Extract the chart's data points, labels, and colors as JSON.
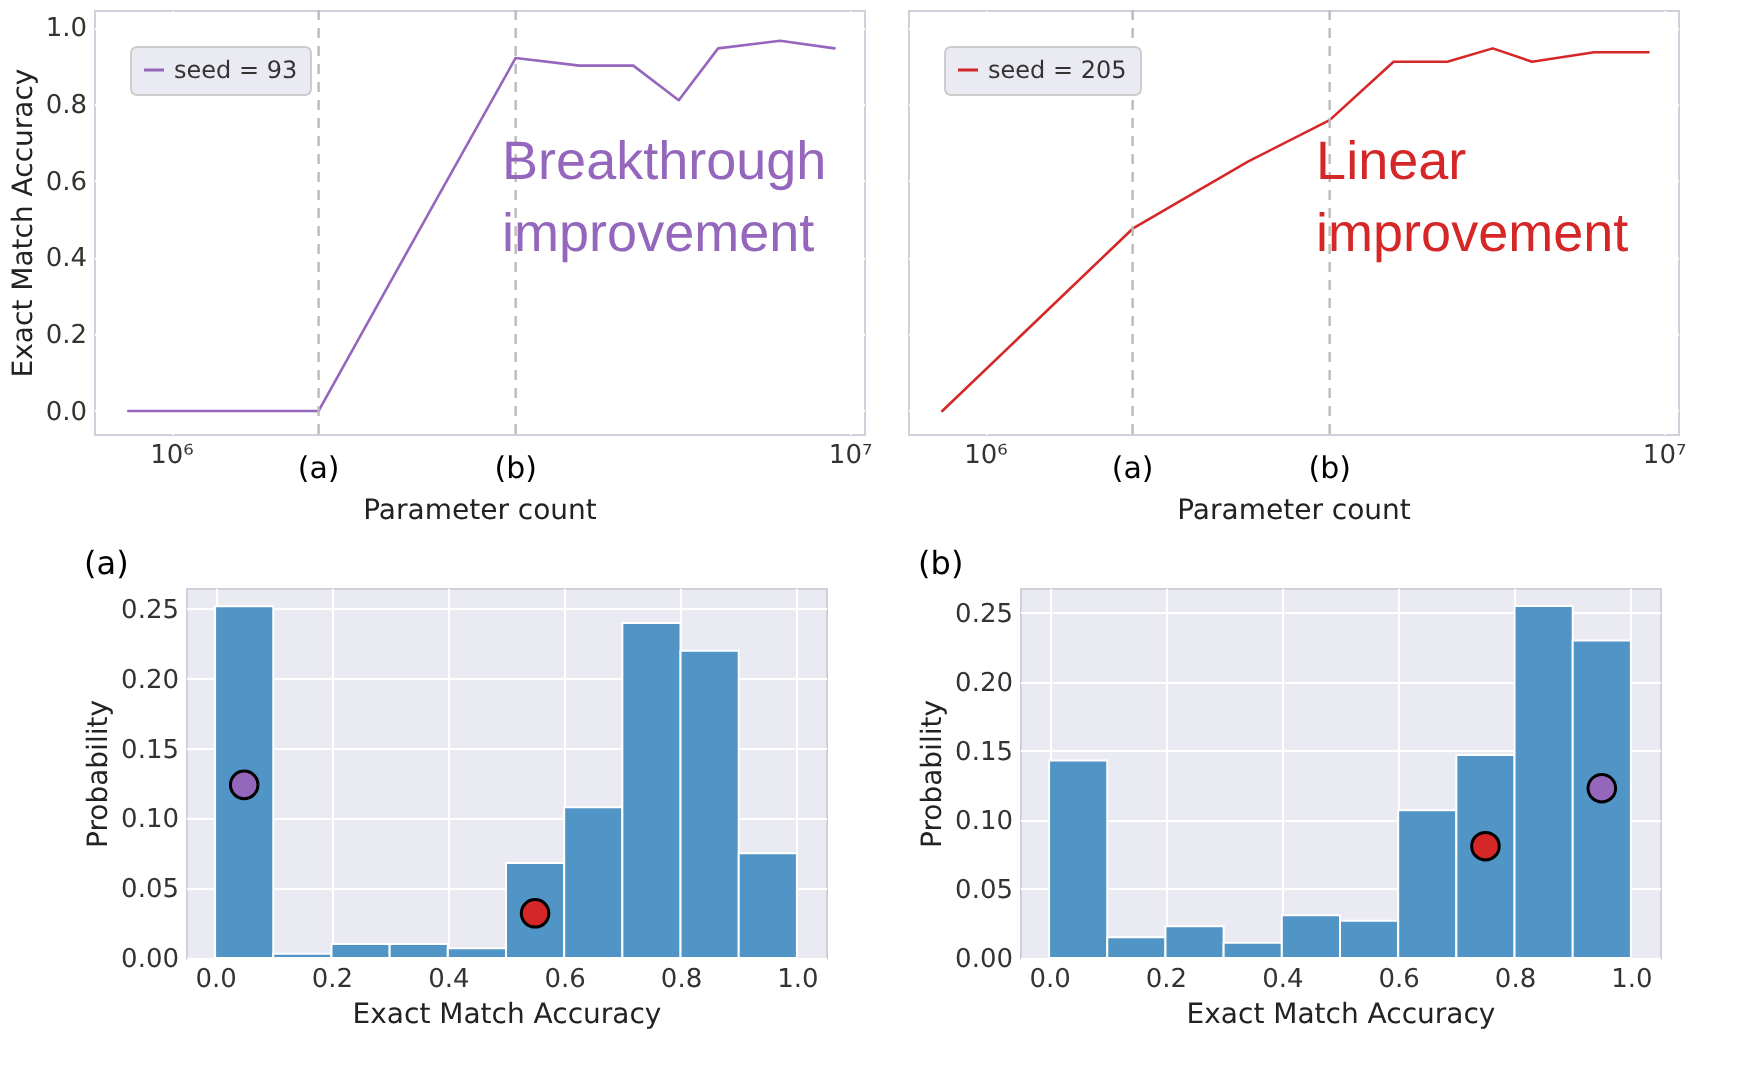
{
  "chart_data": [
    {
      "type": "line",
      "xlabel": "Parameter count",
      "ylabel": "Exact Match Accuracy",
      "log": "x",
      "grid": true,
      "legend": "top left",
      "marker": "none",
      "line_style": "solid",
      "x": [
        865000,
        1650000,
        2440000,
        3220000,
        4000000,
        4800000,
        5600000,
        6400000,
        7900000,
        9500000
      ],
      "series": [
        {
          "name": "seed = 93",
          "color": "#9467bd",
          "values": [
            0,
            0,
            0.54,
            0.92,
            0.9,
            0.9,
            0.81,
            0.945,
            0.965,
            0.945
          ]
        }
      ],
      "xlim": [
        770000,
        10500000
      ],
      "xticks": [
        {
          "value": 1000000,
          "label": "10⁶"
        },
        {
          "value": 10000000,
          "label": "10⁷"
        }
      ],
      "ylim": [
        -0.06,
        1.045
      ],
      "yticks": [
        {
          "value": 0,
          "label": "0.0"
        },
        0.2,
        0.4,
        0.6,
        0.8,
        {
          "value": 1,
          "label": "1.0"
        }
      ],
      "ref_lines": [
        {
          "axis": "x",
          "value": 1650000,
          "label": "(a)",
          "color": "#bbbbbb",
          "line_style": "dashed"
        },
        {
          "axis": "x",
          "value": 3220000,
          "label": "(b)",
          "color": "#bbbbbb",
          "line_style": "dashed"
        }
      ],
      "annotations": [
        "Breakthrough\nimprovement"
      ]
    },
    {
      "type": "line",
      "xlabel": "Parameter count",
      "log": "x",
      "grid": true,
      "legend": "top left",
      "marker": "none",
      "line_style": "solid",
      "tick_labels": "x",
      "x": [
        865000,
        1650000,
        2440000,
        3220000,
        4000000,
        4800000,
        5600000,
        6400000,
        7900000,
        9500000
      ],
      "series": [
        {
          "name": "seed = 205",
          "color": "#d62728",
          "values": [
            0,
            0.475,
            0.65,
            0.758,
            0.91,
            0.91,
            0.945,
            0.91,
            0.935,
            0.935
          ]
        }
      ],
      "xlim": [
        770000,
        10500000
      ],
      "xticks": [
        {
          "value": 1000000,
          "label": "10⁶"
        },
        {
          "value": 10000000,
          "label": "10⁷"
        }
      ],
      "ylim": [
        -0.06,
        1.045
      ],
      "yticks": [
        0,
        0.2,
        0.4,
        0.6,
        0.8,
        1
      ],
      "ref_lines": [
        {
          "axis": "x",
          "value": 1650000,
          "label": "(a)",
          "color": "#bbbbbb",
          "line_style": "dashed"
        },
        {
          "axis": "x",
          "value": 3220000,
          "label": "(b)",
          "color": "#bbbbbb",
          "line_style": "dashed"
        }
      ],
      "annotations": [
        "Linear\nimprovement"
      ]
    },
    {
      "type": "histogram",
      "title": "(a)",
      "xlabel": "Exact Match Accuracy",
      "ylabel": "Probability",
      "grid": true,
      "marker": "circle",
      "bins": [
        0,
        0.1,
        0.2,
        0.3,
        0.4,
        0.5,
        0.6,
        0.7,
        0.8,
        0.9,
        1
      ],
      "series": [
        {
          "type": "histogram",
          "color": "#5095c5",
          "values": [
            0.252,
            0.003,
            0.01,
            0.01,
            0.007,
            0.068,
            0.108,
            0.24,
            0.22,
            0.075
          ]
        },
        {
          "type": "scatter",
          "color": "#9467bd",
          "x": [
            0.05
          ],
          "values": [
            0.124
          ]
        },
        {
          "type": "scatter",
          "color": "#d62728",
          "x": [
            0.55
          ],
          "values": [
            0.032
          ]
        }
      ],
      "xlim": [
        -0.05,
        1.05
      ],
      "xticks": [
        {
          "value": 0,
          "label": "0.0"
        },
        0.2,
        0.4,
        0.6,
        0.8,
        {
          "value": 1,
          "label": "1.0"
        }
      ],
      "ylim": [
        0,
        0.265
      ],
      "yticks": [
        {
          "value": 0,
          "label": "0.00"
        },
        0.05,
        {
          "value": 0.1,
          "label": "0.10"
        },
        0.15,
        {
          "value": 0.2,
          "label": "0.20"
        },
        0.25
      ]
    },
    {
      "type": "histogram",
      "title": "(b)",
      "xlabel": "Exact Match Accuracy",
      "ylabel": "Probability",
      "grid": true,
      "marker": "circle",
      "bins": [
        0,
        0.1,
        0.2,
        0.3,
        0.4,
        0.5,
        0.6,
        0.7,
        0.8,
        0.9,
        1
      ],
      "series": [
        {
          "type": "histogram",
          "color": "#5095c5",
          "values": [
            0.143,
            0.015,
            0.023,
            0.011,
            0.031,
            0.027,
            0.107,
            0.147,
            0.255,
            0.23
          ]
        },
        {
          "type": "scatter",
          "color": "#d62728",
          "x": [
            0.75
          ],
          "values": [
            0.081
          ]
        },
        {
          "type": "scatter",
          "color": "#9467bd",
          "x": [
            0.95
          ],
          "values": [
            0.123
          ]
        }
      ],
      "xlim": [
        -0.05,
        1.05
      ],
      "xticks": [
        {
          "value": 0,
          "label": "0.0"
        },
        0.2,
        0.4,
        0.6,
        0.8,
        {
          "value": 1,
          "label": "1.0"
        }
      ],
      "ylim": [
        0,
        0.268
      ],
      "yticks": [
        {
          "value": 0,
          "label": "0.00"
        },
        0.05,
        {
          "value": 0.1,
          "label": "0.10"
        },
        0.15,
        {
          "value": 0.2,
          "label": "0.20"
        },
        0.25
      ]
    }
  ]
}
